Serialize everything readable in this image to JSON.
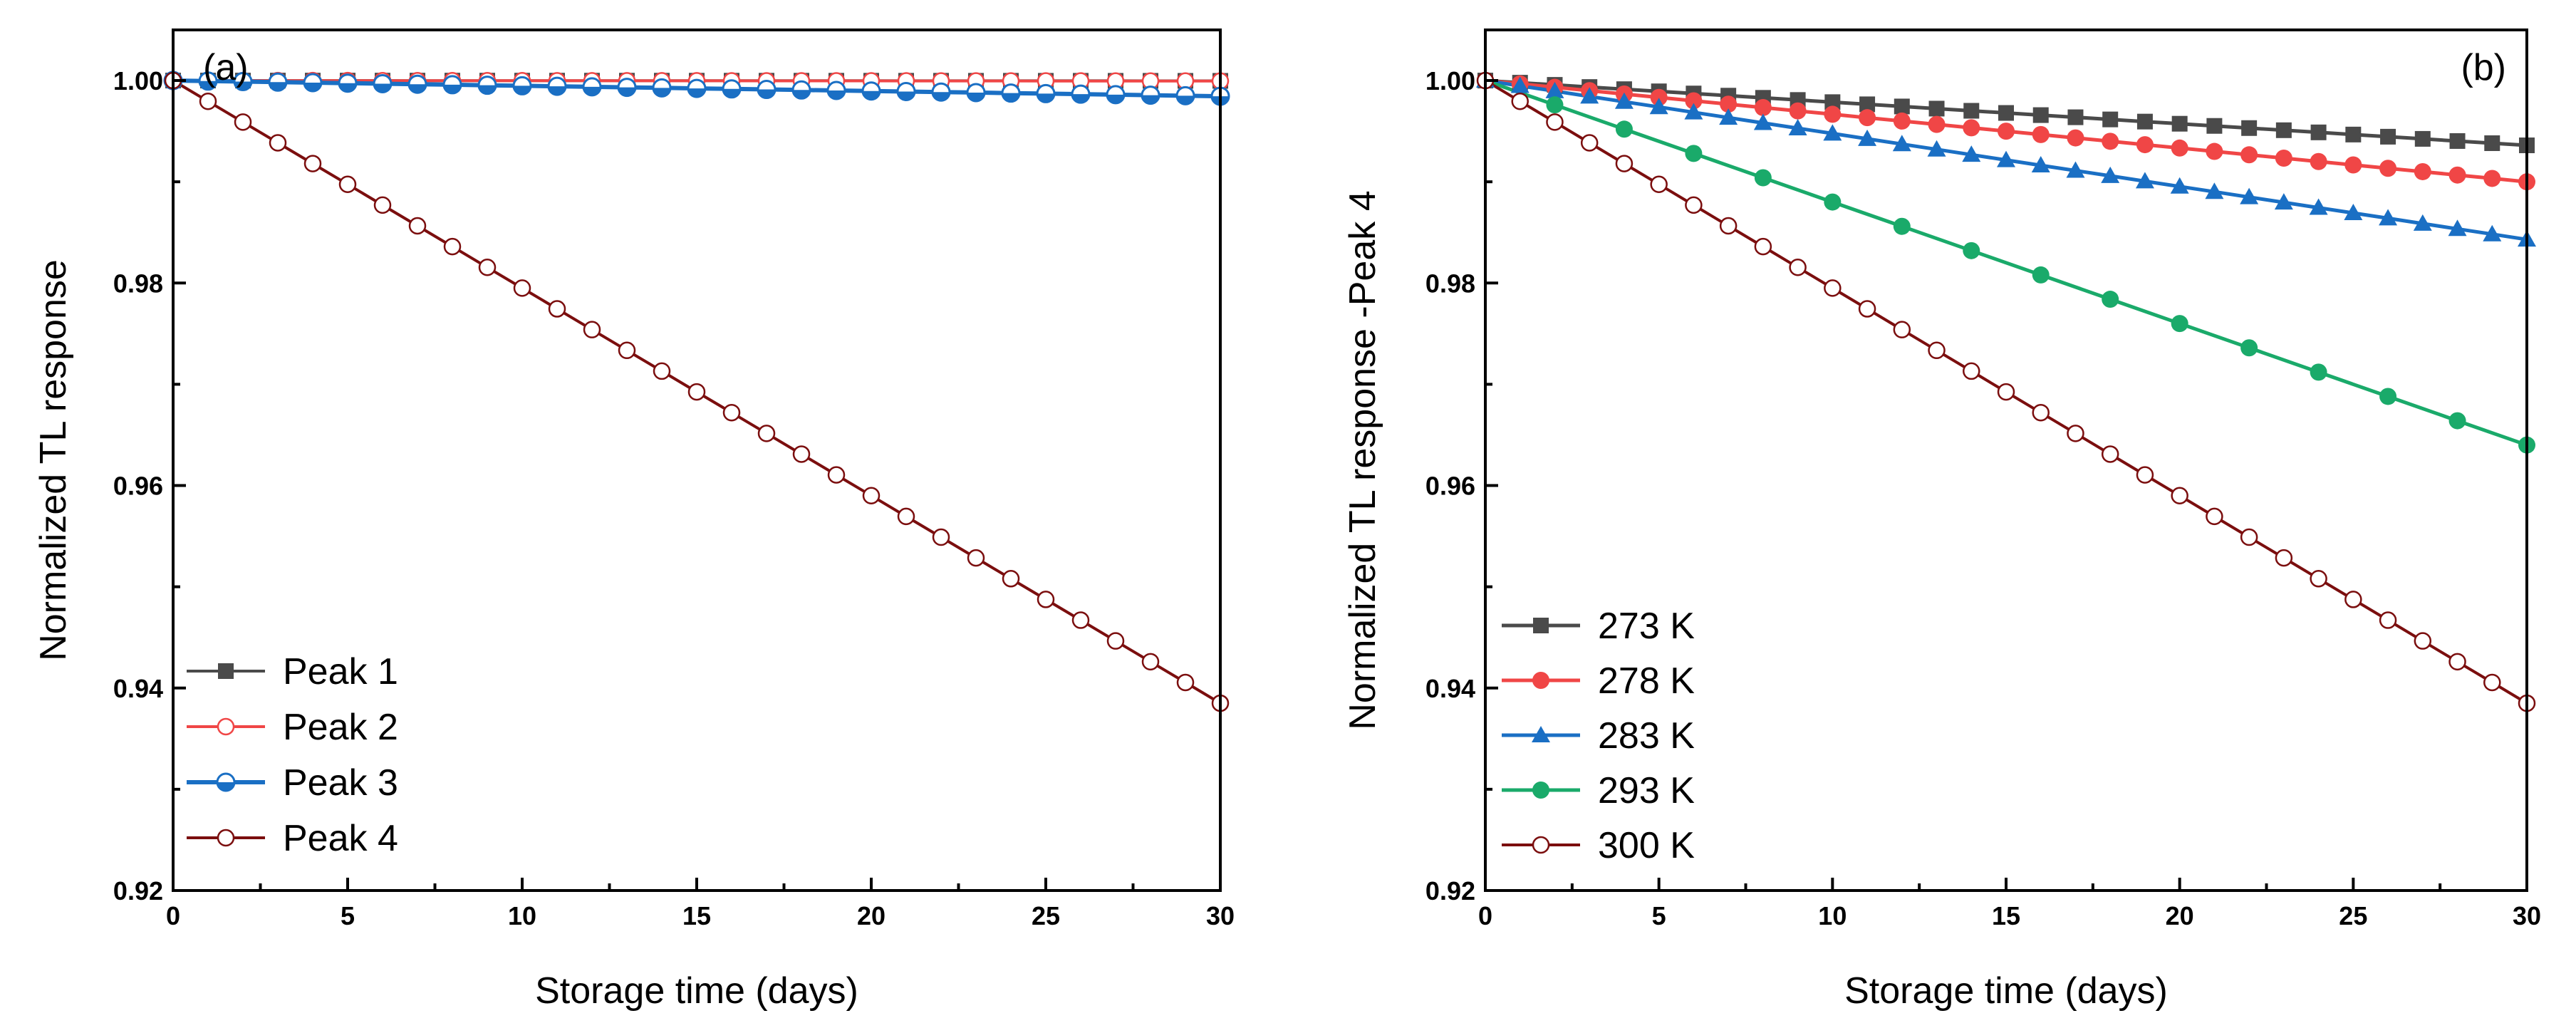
{
  "chart_data": [
    {
      "type": "line",
      "panel_label": "(a)",
      "xlabel": "Storage time (days)",
      "ylabel": "Normalized TL response",
      "xlim": [
        0,
        30
      ],
      "ylim": [
        0.92,
        1.005
      ],
      "x_ticks": [
        0,
        5,
        10,
        15,
        20,
        25,
        30
      ],
      "x_tick_labels": [
        "0",
        "5",
        "10",
        "15",
        "20",
        "25",
        "30"
      ],
      "y_ticks": [
        0.92,
        0.94,
        0.96,
        0.98,
        1.0
      ],
      "y_tick_labels": [
        "0.92",
        "0.94",
        "0.96",
        "0.98",
        "1.00"
      ],
      "legend_position": "bottom-left",
      "x": [
        0,
        1,
        2,
        3,
        4,
        5,
        6,
        7,
        8,
        9,
        10,
        11,
        12,
        13,
        14,
        15,
        16,
        17,
        18,
        19,
        20,
        21,
        22,
        23,
        24,
        25,
        26,
        27,
        28,
        29,
        30
      ],
      "series": [
        {
          "name": "Peak 1",
          "color": "#4a4a4a",
          "marker": "square",
          "line_width": 4,
          "start": 1.0,
          "end": 0.99997
        },
        {
          "name": "Peak 2",
          "color": "#f04646",
          "marker": "open-circle",
          "line_width": 4,
          "start": 1.0,
          "end": 0.99995
        },
        {
          "name": "Peak 3",
          "color": "#1a6fc4",
          "marker": "half-circle",
          "line_width": 6,
          "start": 1.0,
          "end": 0.99845
        },
        {
          "name": "Peak 4",
          "color": "#7b0e0e",
          "marker": "open-circle",
          "line_width": 4,
          "start": 1.0,
          "end": 0.9385
        }
      ]
    },
    {
      "type": "line",
      "panel_label": "(b)",
      "xlabel": "Storage time (days)",
      "ylabel": "Normalized TL response -Peak 4",
      "xlim": [
        0,
        30
      ],
      "ylim": [
        0.92,
        1.005
      ],
      "x_ticks": [
        0,
        5,
        10,
        15,
        20,
        25,
        30
      ],
      "x_tick_labels": [
        "0",
        "5",
        "10",
        "15",
        "20",
        "25",
        "30"
      ],
      "y_ticks": [
        0.92,
        0.94,
        0.96,
        0.98,
        1.0
      ],
      "y_tick_labels": [
        "0.92",
        "0.94",
        "0.96",
        "0.98",
        "1.00"
      ],
      "legend_position": "bottom-left",
      "series": [
        {
          "name": "273 K",
          "color": "#4a4a4a",
          "marker": "square",
          "line_width": 5,
          "x_step": 1,
          "start": 1.0,
          "end": 0.9936
        },
        {
          "name": "278 K",
          "color": "#f04646",
          "marker": "circle",
          "line_width": 5,
          "x_step": 1,
          "start": 1.0,
          "end": 0.99
        },
        {
          "name": "283 K",
          "color": "#1a6fc4",
          "marker": "triangle",
          "line_width": 5,
          "x_step": 1,
          "start": 1.0,
          "end": 0.9843
        },
        {
          "name": "293 K",
          "color": "#1aaa6a",
          "marker": "circle",
          "line_width": 5,
          "x_step": 2,
          "start": 1.0,
          "end": 0.964
        },
        {
          "name": "300 K",
          "color": "#7b0e0e",
          "marker": "open-circle",
          "line_width": 4,
          "x_step": 1,
          "start": 1.0,
          "end": 0.9385
        }
      ]
    }
  ]
}
